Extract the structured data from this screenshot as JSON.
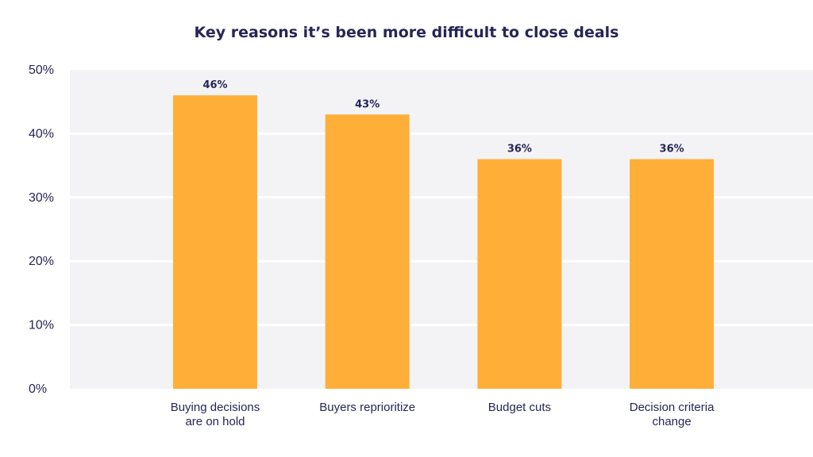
{
  "chart_data": {
    "type": "bar",
    "title": "Key reasons it’s been more difficult to close deals",
    "categories": [
      [
        "Buying decisions",
        "are on hold"
      ],
      [
        "Buyers reprioritize"
      ],
      [
        "Budget cuts"
      ],
      [
        "Decision criteria",
        "change"
      ]
    ],
    "values": [
      46,
      43,
      36,
      36
    ],
    "value_labels": [
      "46%",
      "43%",
      "36%",
      "36%"
    ],
    "ylim": [
      0,
      50
    ],
    "yticks": [
      0,
      10,
      20,
      30,
      40,
      50
    ],
    "ytick_labels": [
      "0%",
      "10%",
      "20%",
      "30%",
      "40%",
      "50%"
    ],
    "grid": true,
    "legend": "none",
    "colors": {
      "bar": "#FFAF38",
      "plot_background": "#F3F3F6",
      "gridline": "#FFFFFF",
      "text": "#262657"
    }
  }
}
